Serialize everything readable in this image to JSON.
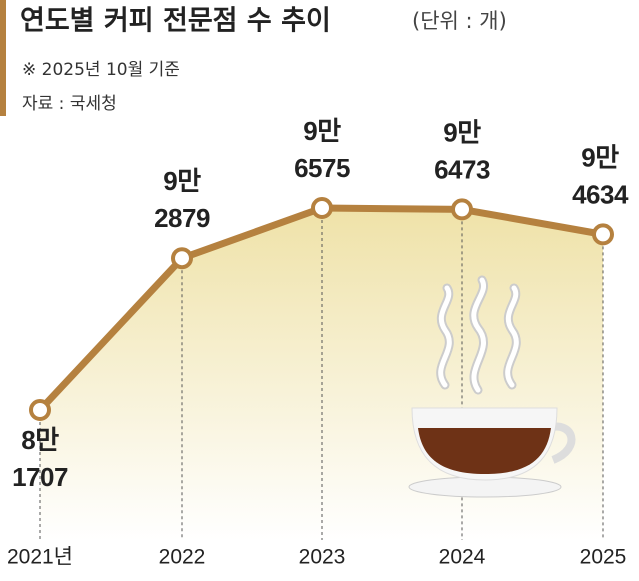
{
  "chart_data": {
    "type": "line",
    "title": "연도별 커피 전문점 수 추이",
    "unit_note": "(단위 : 개)",
    "subtitle": "※ 2025년 10월 기준",
    "source": "자료 : 국세청",
    "categories": [
      "2021년",
      "2022",
      "2023",
      "2024",
      "2025"
    ],
    "values": [
      81707,
      92879,
      96575,
      96473,
      94634
    ],
    "value_labels": [
      "8만\n1707",
      "9만\n2879",
      "9만\n6575",
      "9만\n6473",
      "9만\n4634"
    ],
    "color": "#b5813f"
  }
}
